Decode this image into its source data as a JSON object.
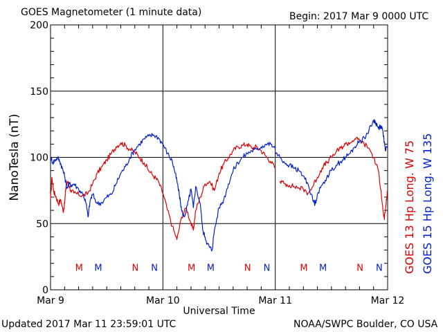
{
  "header": {
    "title": "GOES Magnetometer (1 minute data)",
    "begin": "Begin:  2017 Mar 9 0000 UTC"
  },
  "footer": {
    "updated": "Updated 2017 Mar 11 23:59:01 UTC",
    "credit": "NOAA/SWPC Boulder, CO USA"
  },
  "right_labels": {
    "goes13": "GOES 13 Hp  Long. W 75",
    "goes15": "GOES 15 Hp  Long. W 135"
  },
  "colors": {
    "goes13": "#e00000",
    "goes15": "#0020d0",
    "grid": "#000000"
  },
  "chart_data": {
    "type": "line",
    "title": "GOES Magnetometer (1 minute data)",
    "xlabel": "Universal Time",
    "ylabel": "NanoTesla (nT)",
    "xlim": [
      0,
      72
    ],
    "ylim": [
      0,
      200
    ],
    "grid": true,
    "x_unit": "hours since 2017 Mar 9 0000 UTC",
    "x_ticks": [
      {
        "x": 0,
        "label": "Mar 9"
      },
      {
        "x": 24,
        "label": "Mar 10"
      },
      {
        "x": 48,
        "label": "Mar 11"
      },
      {
        "x": 72,
        "label": "Mar 12"
      }
    ],
    "y_ticks": [
      0,
      50,
      100,
      150,
      200
    ],
    "series": [
      {
        "name": "GOES 13 Hp  Long. W 75",
        "color": "#e00000",
        "segments": [
          [
            [
              0,
              68
            ],
            [
              0.3,
              85
            ],
            [
              0.7,
              74
            ],
            [
              1.2,
              70
            ],
            [
              1.7,
              65
            ],
            [
              2.2,
              68
            ],
            [
              2.7,
              59
            ],
            [
              3.0,
              65
            ],
            [
              3.3,
              78
            ],
            [
              3.7,
              82
            ],
            [
              4.3,
              75
            ],
            [
              5,
              73
            ],
            [
              6,
              72
            ],
            [
              7,
              71
            ],
            [
              8,
              73
            ],
            [
              9,
              80
            ],
            [
              10,
              88
            ],
            [
              11,
              93
            ],
            [
              12,
              98
            ],
            [
              13,
              103
            ],
            [
              14,
              108
            ],
            [
              15,
              111
            ],
            [
              16,
              109
            ],
            [
              17,
              106
            ],
            [
              18,
              104
            ],
            [
              19,
              100
            ],
            [
              20,
              96
            ],
            [
              21,
              90
            ],
            [
              22,
              86
            ],
            [
              23,
              82
            ],
            [
              24,
              73
            ],
            [
              25,
              60
            ],
            [
              26,
              48
            ],
            [
              27,
              38
            ],
            [
              28,
              55
            ],
            [
              29,
              62
            ],
            [
              30,
              50
            ],
            [
              30.5,
              45
            ],
            [
              31,
              60
            ],
            [
              32,
              70
            ],
            [
              33,
              80
            ],
            [
              34,
              82
            ],
            [
              35,
              75
            ],
            [
              36,
              88
            ],
            [
              37,
              95
            ],
            [
              38,
              100
            ],
            [
              39,
              105
            ],
            [
              40,
              108
            ],
            [
              41,
              109
            ],
            [
              42,
              110
            ],
            [
              43,
              107
            ],
            [
              44,
              108
            ],
            [
              45,
              105
            ],
            [
              46,
              101
            ],
            [
              47,
              97
            ],
            [
              48,
              92
            ]
          ],
          [
            [
              49,
              82
            ],
            [
              50,
              80
            ],
            [
              51,
              79
            ],
            [
              52,
              78
            ],
            [
              53,
              77
            ],
            [
              54,
              76
            ],
            [
              55,
              73
            ],
            [
              56,
              78
            ],
            [
              57,
              85
            ],
            [
              58,
              92
            ],
            [
              59,
              96
            ],
            [
              60,
              100
            ],
            [
              61,
              104
            ],
            [
              62,
              107
            ],
            [
              63,
              110
            ],
            [
              64,
              111
            ],
            [
              65,
              114
            ],
            [
              66,
              113
            ],
            [
              67,
              110
            ],
            [
              68,
              107
            ],
            [
              69,
              100
            ],
            [
              70,
              90
            ],
            [
              70.6,
              75
            ],
            [
              71,
              60
            ],
            [
              71.3,
              53
            ],
            [
              71.6,
              63
            ],
            [
              72,
              75
            ]
          ]
        ]
      },
      {
        "name": "GOES 15 Hp  Long. W 135",
        "color": "#0020d0",
        "segments": [
          [
            [
              0,
              100
            ],
            [
              0.5,
              96
            ],
            [
              1,
              98
            ],
            [
              1.5,
              100
            ],
            [
              2,
              97
            ],
            [
              2.5,
              92
            ],
            [
              3,
              86
            ],
            [
              3.5,
              77
            ],
            [
              4,
              80
            ],
            [
              4.5,
              79
            ],
            [
              5,
              80
            ],
            [
              6,
              76
            ],
            [
              7,
              72
            ],
            [
              7.6,
              65
            ],
            [
              8,
              55
            ],
            [
              8.5,
              68
            ],
            [
              9,
              72
            ],
            [
              10,
              65
            ],
            [
              11,
              66
            ],
            [
              12,
              70
            ],
            [
              13,
              72
            ],
            [
              14,
              80
            ],
            [
              15,
              88
            ],
            [
              16,
              93
            ],
            [
              17,
              100
            ],
            [
              18,
              106
            ],
            [
              19,
              110
            ],
            [
              20,
              114
            ],
            [
              21,
              116
            ],
            [
              22,
              117
            ],
            [
              23,
              115
            ],
            [
              24,
              110
            ],
            [
              25,
              103
            ],
            [
              26,
              97
            ],
            [
              26.5,
              90
            ],
            [
              27,
              82
            ],
            [
              27.5,
              72
            ],
            [
              28,
              60
            ],
            [
              28.5,
              55
            ],
            [
              29,
              60
            ],
            [
              29.5,
              68
            ],
            [
              30,
              76
            ],
            [
              30.5,
              62
            ],
            [
              31,
              78
            ],
            [
              32,
              65
            ],
            [
              32.5,
              45
            ],
            [
              33,
              40
            ],
            [
              33.5,
              35
            ],
            [
              34,
              32
            ],
            [
              34.5,
              30
            ],
            [
              35,
              45
            ],
            [
              36,
              62
            ],
            [
              37,
              68
            ],
            [
              38,
              80
            ],
            [
              39,
              90
            ],
            [
              40,
              96
            ],
            [
              41,
              100
            ],
            [
              42,
              103
            ],
            [
              43,
              105
            ],
            [
              44,
              106
            ],
            [
              45,
              108
            ],
            [
              46,
              110
            ],
            [
              47,
              110
            ],
            [
              48,
              106
            ]
          ],
          [
            [
              48,
              104
            ],
            [
              49,
              100
            ],
            [
              50,
              96
            ],
            [
              51,
              94
            ],
            [
              52,
              92
            ],
            [
              53,
              90
            ],
            [
              54,
              86
            ],
            [
              55,
              80
            ],
            [
              56,
              68
            ],
            [
              56.5,
              65
            ],
            [
              57,
              72
            ],
            [
              58,
              79
            ],
            [
              59,
              85
            ],
            [
              60,
              90
            ],
            [
              61,
              94
            ],
            [
              62,
              97
            ],
            [
              63,
              100
            ],
            [
              64,
              103
            ],
            [
              65,
              108
            ],
            [
              66,
              112
            ],
            [
              67,
              115
            ],
            [
              68,
              120
            ],
            [
              69,
              128
            ],
            [
              69.5,
              126
            ],
            [
              70,
              122
            ],
            [
              70.5,
              124
            ],
            [
              71,
              120
            ],
            [
              71.5,
              105
            ],
            [
              72,
              108
            ]
          ]
        ]
      }
    ],
    "markers": [
      {
        "label": "M",
        "x": 6.1,
        "y": 17,
        "color": "#e00000"
      },
      {
        "label": "M",
        "x": 10.2,
        "y": 17,
        "color": "#0020d0"
      },
      {
        "label": "N",
        "x": 18.1,
        "y": 17,
        "color": "#e00000"
      },
      {
        "label": "N",
        "x": 22.2,
        "y": 17,
        "color": "#0020d0"
      },
      {
        "label": "M",
        "x": 30.1,
        "y": 17,
        "color": "#e00000"
      },
      {
        "label": "M",
        "x": 34.2,
        "y": 17,
        "color": "#0020d0"
      },
      {
        "label": "N",
        "x": 42.1,
        "y": 17,
        "color": "#e00000"
      },
      {
        "label": "N",
        "x": 46.2,
        "y": 17,
        "color": "#0020d0"
      },
      {
        "label": "M",
        "x": 54.1,
        "y": 17,
        "color": "#e00000"
      },
      {
        "label": "M",
        "x": 58.2,
        "y": 17,
        "color": "#0020d0"
      },
      {
        "label": "N",
        "x": 66.1,
        "y": 17,
        "color": "#e00000"
      },
      {
        "label": "N",
        "x": 70.2,
        "y": 17,
        "color": "#0020d0"
      }
    ]
  }
}
